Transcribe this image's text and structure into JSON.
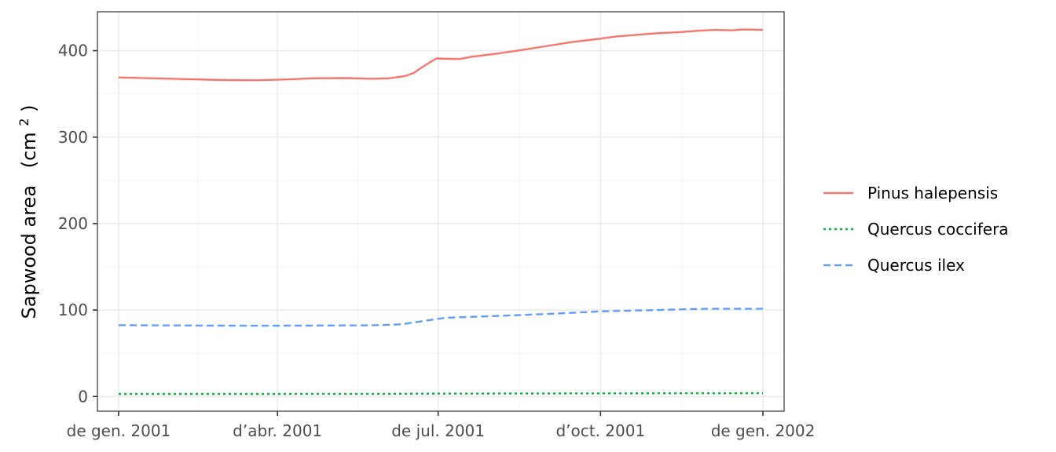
{
  "chart_data": {
    "type": "line",
    "title": "",
    "xlabel": "",
    "ylabel": "Sapwood area",
    "ylabel_unit": "(cm",
    "ylabel_unit_sup": "2",
    "ylabel_unit_close": ")",
    "xlim": [
      "2000-12-20",
      "2002-01-13"
    ],
    "ylim": [
      -17,
      445
    ],
    "y_ticks": [
      0,
      100,
      200,
      300,
      400
    ],
    "x_ticks": [
      {
        "date": "2001-01-01",
        "label": "de gen. 2001"
      },
      {
        "date": "2001-04-01",
        "label": "d’abr. 2001"
      },
      {
        "date": "2001-07-01",
        "label": "de jul. 2001"
      },
      {
        "date": "2001-10-01",
        "label": "d’oct. 2001"
      },
      {
        "date": "2002-01-01",
        "label": "de gen. 2002"
      }
    ],
    "grid": true,
    "legend": "right",
    "series": [
      {
        "name": "Pinus halepensis",
        "color": "#f8766d",
        "dash": "solid",
        "points": [
          [
            "2001-01-01",
            369
          ],
          [
            "2001-02-01",
            367.5
          ],
          [
            "2001-03-01",
            366
          ],
          [
            "2001-03-20",
            365.8
          ],
          [
            "2001-04-10",
            367
          ],
          [
            "2001-04-20",
            368
          ],
          [
            "2001-05-10",
            368.3
          ],
          [
            "2001-05-25",
            367.5
          ],
          [
            "2001-06-03",
            368
          ],
          [
            "2001-06-12",
            370.5
          ],
          [
            "2001-06-17",
            374
          ],
          [
            "2001-06-22",
            381
          ],
          [
            "2001-06-28",
            388.5
          ],
          [
            "2001-06-30",
            391
          ],
          [
            "2001-07-08",
            390.5
          ],
          [
            "2001-07-13",
            390.3
          ],
          [
            "2001-07-20",
            393
          ],
          [
            "2001-08-01",
            396
          ],
          [
            "2001-08-15",
            400
          ],
          [
            "2001-09-01",
            405.5
          ],
          [
            "2001-09-15",
            410
          ],
          [
            "2001-10-01",
            414
          ],
          [
            "2001-10-10",
            416.5
          ],
          [
            "2001-10-20",
            418
          ],
          [
            "2001-11-01",
            420
          ],
          [
            "2001-11-15",
            421.5
          ],
          [
            "2001-11-25",
            423
          ],
          [
            "2001-12-05",
            424
          ],
          [
            "2001-12-15",
            423.5
          ],
          [
            "2001-12-20",
            424.5
          ],
          [
            "2002-01-01",
            424
          ]
        ]
      },
      {
        "name": "Quercus coccifera",
        "color": "#00ba38",
        "dash": "dotted",
        "points": [
          [
            "2001-01-01",
            3.0
          ],
          [
            "2001-04-01",
            3.0
          ],
          [
            "2001-06-01",
            3.1
          ],
          [
            "2001-07-01",
            3.3
          ],
          [
            "2001-10-01",
            3.6
          ],
          [
            "2002-01-01",
            3.8
          ]
        ]
      },
      {
        "name": "Quercus ilex",
        "color": "#619cff",
        "dash": "dashed",
        "points": [
          [
            "2001-01-01",
            82.5
          ],
          [
            "2001-02-15",
            82
          ],
          [
            "2001-03-20",
            81.8
          ],
          [
            "2001-04-20",
            82
          ],
          [
            "2001-05-25",
            82.3
          ],
          [
            "2001-06-10",
            83.5
          ],
          [
            "2001-06-25",
            88
          ],
          [
            "2001-07-05",
            91
          ],
          [
            "2001-08-01",
            93
          ],
          [
            "2001-09-01",
            95.5
          ],
          [
            "2001-10-01",
            98.5
          ],
          [
            "2001-11-01",
            100
          ],
          [
            "2001-12-01",
            101.5
          ],
          [
            "2002-01-01",
            101.5
          ]
        ]
      }
    ]
  }
}
